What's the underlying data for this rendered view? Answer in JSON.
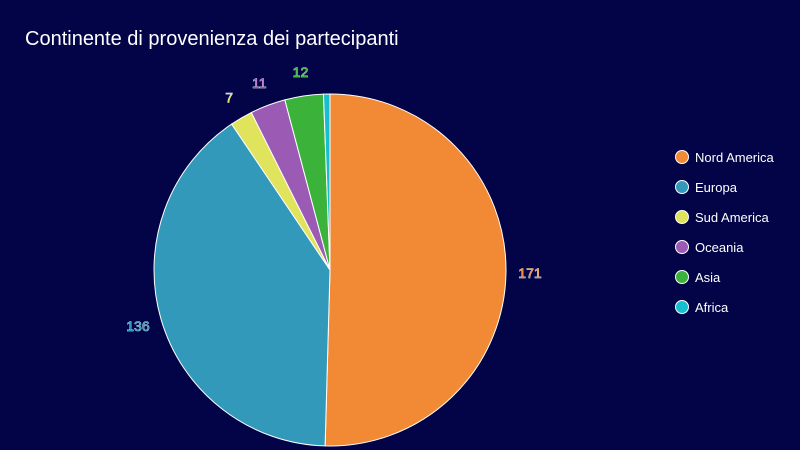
{
  "chart_data": {
    "type": "pie",
    "title": "Continente di provenienza dei partecipanti",
    "legend_position": "right",
    "slices": [
      {
        "name": "Nord America",
        "value": 171,
        "color": "#f28a35"
      },
      {
        "name": "Europa",
        "value": 136,
        "color": "#3399bb"
      },
      {
        "name": "Sud America",
        "value": 7,
        "color": "#e0e35c"
      },
      {
        "name": "Oceania",
        "value": 11,
        "color": "#9b5bb5"
      },
      {
        "name": "Asia",
        "value": 12,
        "color": "#3bb33b"
      },
      {
        "name": "Africa",
        "value": 2,
        "color": "#17bed0"
      }
    ],
    "data_labels_visible": [
      true,
      true,
      true,
      true,
      true,
      false
    ]
  }
}
